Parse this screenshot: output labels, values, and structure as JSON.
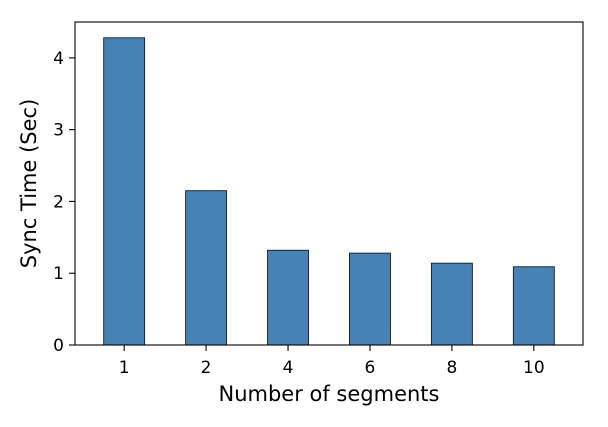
{
  "chart_data": {
    "type": "bar",
    "title": "",
    "xlabel": "Number of segments",
    "ylabel": "Sync Time (Sec)",
    "categories": [
      "1",
      "2",
      "4",
      "6",
      "8",
      "10"
    ],
    "values": [
      4.28,
      2.15,
      1.32,
      1.28,
      1.14,
      1.09
    ],
    "ylim": [
      0,
      4.5
    ],
    "yticks": [
      0,
      1,
      2,
      3,
      4
    ],
    "bar_color": "#4682b4",
    "grid": false,
    "legend": "none"
  }
}
